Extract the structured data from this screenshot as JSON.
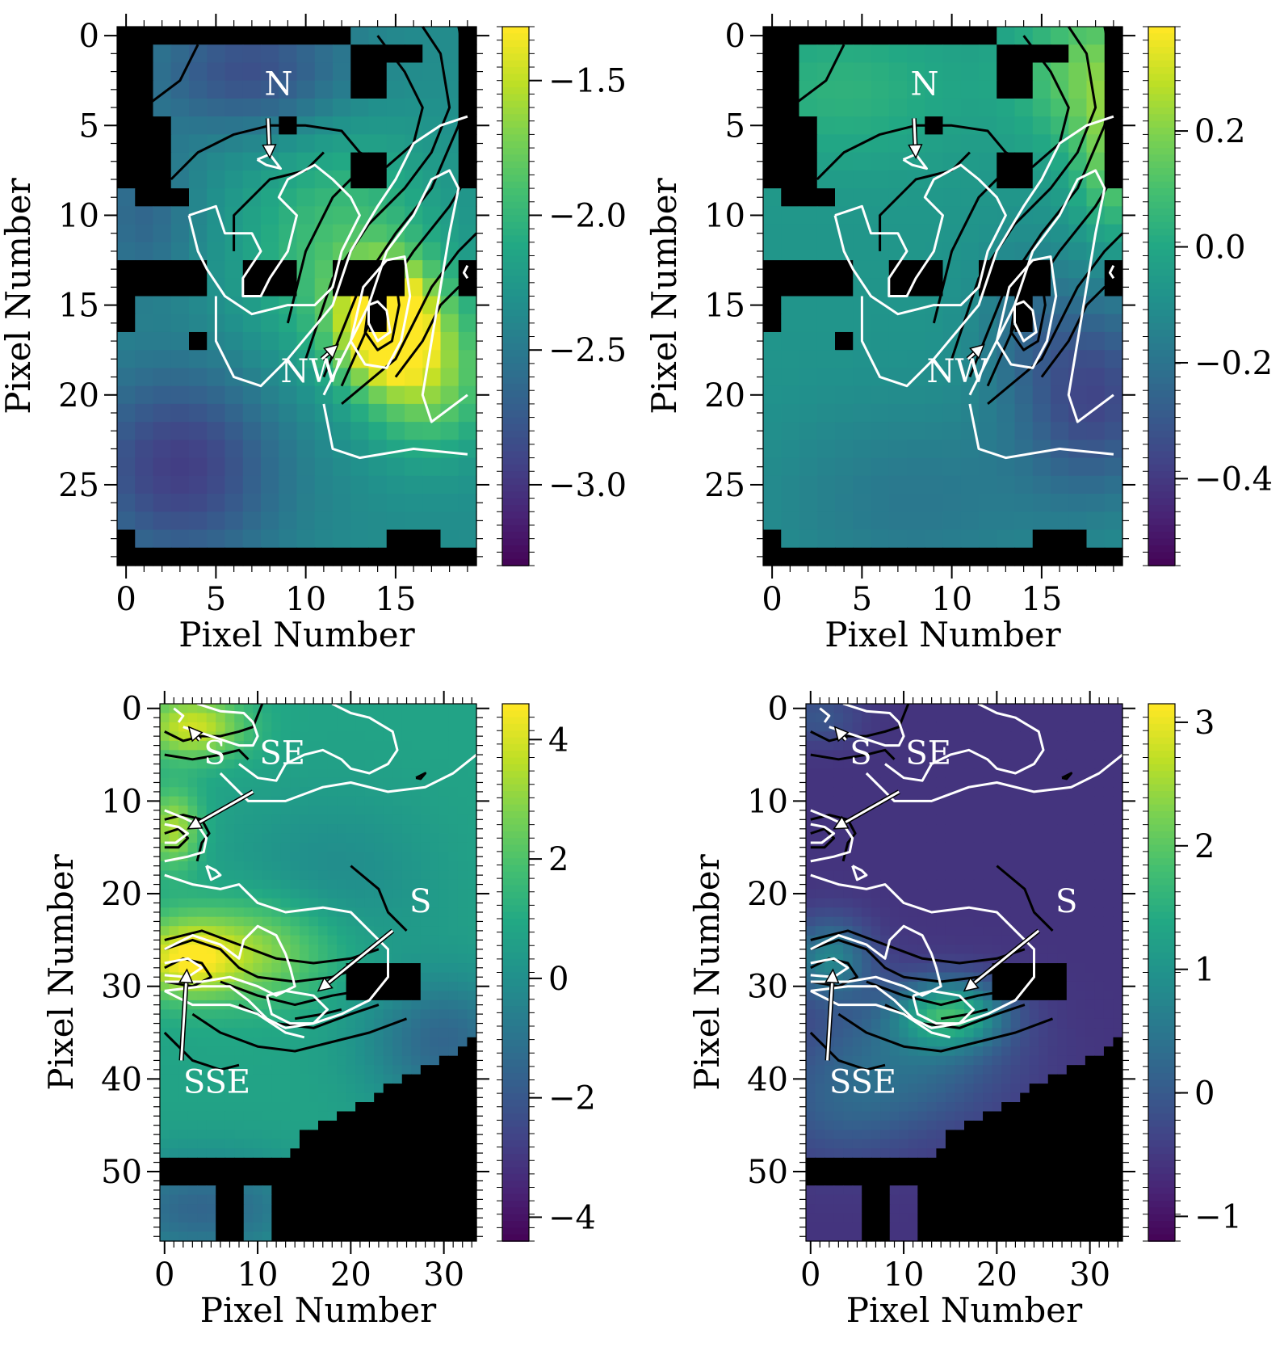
{
  "panels": [
    {
      "id": "top-left",
      "type": "heatmap",
      "xlabel": "Pixel Number",
      "ylabel": "Pixel Number",
      "xlim": [
        -0.5,
        19.5
      ],
      "ylim": [
        29.5,
        -0.5
      ],
      "xticks": [
        "0",
        "5",
        "10",
        "15"
      ],
      "xtick_values": [
        0,
        5,
        10,
        15
      ],
      "yticks": [
        "0",
        "5",
        "10",
        "15",
        "20",
        "25"
      ],
      "ytick_values": [
        0,
        5,
        10,
        15,
        20,
        25
      ],
      "colorbar": {
        "min": -3.3,
        "max": -1.3,
        "ticks": [
          "−1.5",
          "−2.0",
          "−2.5",
          "−3.0"
        ],
        "tick_values": [
          -1.5,
          -2.0,
          -2.5,
          -3.0
        ]
      },
      "annotations": [
        {
          "text": "N",
          "text_xy": [
            7.7,
            3.3
          ],
          "arrow_from": [
            7.9,
            4.6
          ],
          "arrow_to": [
            8.0,
            6.8
          ]
        },
        {
          "text": "NW",
          "text_xy": [
            8.6,
            19.3
          ],
          "arrow_from": [
            10.9,
            18.0
          ],
          "arrow_to": [
            11.8,
            17.2
          ]
        }
      ]
    },
    {
      "id": "top-right",
      "type": "heatmap",
      "xlabel": "Pixel Number",
      "ylabel": "Pixel Number",
      "xlim": [
        -0.5,
        19.5
      ],
      "ylim": [
        29.5,
        -0.5
      ],
      "xticks": [
        "0",
        "5",
        "10",
        "15"
      ],
      "xtick_values": [
        0,
        5,
        10,
        15
      ],
      "yticks": [
        "0",
        "5",
        "10",
        "15",
        "20",
        "25"
      ],
      "ytick_values": [
        0,
        5,
        10,
        15,
        20,
        25
      ],
      "colorbar": {
        "min": -0.55,
        "max": 0.38,
        "ticks": [
          "0.2",
          "0.0",
          "−0.2",
          "−0.4"
        ],
        "tick_values": [
          0.2,
          0.0,
          -0.2,
          -0.4
        ]
      },
      "annotations": [
        {
          "text": "N",
          "text_xy": [
            7.7,
            3.3
          ],
          "arrow_from": [
            7.9,
            4.6
          ],
          "arrow_to": [
            8.0,
            6.8
          ]
        },
        {
          "text": "NW",
          "text_xy": [
            8.6,
            19.3
          ],
          "arrow_from": [
            10.9,
            18.0
          ],
          "arrow_to": [
            11.8,
            17.2
          ]
        }
      ]
    },
    {
      "id": "bottom-left",
      "type": "heatmap",
      "xlabel": "Pixel Number",
      "ylabel": "Pixel Number",
      "xlim": [
        -0.5,
        33.5
      ],
      "ylim": [
        57.5,
        -0.5
      ],
      "xticks": [
        "0",
        "10",
        "20",
        "30"
      ],
      "xtick_values": [
        0,
        10,
        20,
        30
      ],
      "yticks": [
        "0",
        "10",
        "20",
        "30",
        "40",
        "50"
      ],
      "ytick_values": [
        0,
        10,
        20,
        30,
        40,
        50
      ],
      "colorbar": {
        "min": -4.4,
        "max": 4.6,
        "ticks": [
          "4",
          "2",
          "0",
          "−2",
          "−4"
        ],
        "tick_values": [
          4,
          2,
          0,
          -2,
          -4
        ]
      },
      "annotations": [
        {
          "text": "S",
          "text_xy": [
            4.2,
            6.0
          ],
          "arrow_from": [
            3.8,
            3.4
          ],
          "arrow_to": [
            2.6,
            2.0
          ]
        },
        {
          "text": "SE",
          "text_xy": [
            10.2,
            6.0
          ],
          "arrow_from": [
            9.5,
            9.0
          ],
          "arrow_to": [
            2.5,
            13.0
          ]
        },
        {
          "text": "S",
          "text_xy": [
            26.3,
            22.0
          ],
          "arrow_from": [
            24.5,
            24.0
          ],
          "arrow_to": [
            16.5,
            30.5
          ]
        },
        {
          "text": "SSE",
          "text_xy": [
            2.0,
            41.5
          ],
          "arrow_from": [
            1.8,
            38.0
          ],
          "arrow_to": [
            2.4,
            28.2
          ]
        }
      ]
    },
    {
      "id": "bottom-right",
      "type": "heatmap",
      "xlabel": "Pixel Number",
      "ylabel": "Pixel Number",
      "xlim": [
        -0.5,
        33.5
      ],
      "ylim": [
        57.5,
        -0.5
      ],
      "xticks": [
        "0",
        "10",
        "20",
        "30"
      ],
      "xtick_values": [
        0,
        10,
        20,
        30
      ],
      "yticks": [
        "0",
        "10",
        "20",
        "30",
        "40",
        "50"
      ],
      "ytick_values": [
        0,
        10,
        20,
        30,
        40,
        50
      ],
      "colorbar": {
        "min": -1.2,
        "max": 3.15,
        "ticks": [
          "3",
          "2",
          "1",
          "0",
          "−1"
        ],
        "tick_values": [
          3,
          2,
          1,
          0,
          -1
        ]
      },
      "annotations": [
        {
          "text": "S",
          "text_xy": [
            4.2,
            6.0
          ],
          "arrow_from": [
            3.8,
            3.4
          ],
          "arrow_to": [
            2.6,
            2.0
          ]
        },
        {
          "text": "SE",
          "text_xy": [
            10.2,
            6.0
          ],
          "arrow_from": [
            9.5,
            9.0
          ],
          "arrow_to": [
            2.5,
            13.0
          ]
        },
        {
          "text": "S",
          "text_xy": [
            26.3,
            22.0
          ],
          "arrow_from": [
            24.5,
            24.0
          ],
          "arrow_to": [
            16.5,
            30.5
          ]
        },
        {
          "text": "SSE",
          "text_xy": [
            2.0,
            41.5
          ],
          "arrow_from": [
            1.8,
            38.0
          ],
          "arrow_to": [
            2.4,
            28.2
          ]
        }
      ]
    }
  ],
  "colors": {
    "colormap": "viridis",
    "mask": "#000000",
    "contour_white": "#ffffff",
    "contour_black": "#000000"
  }
}
